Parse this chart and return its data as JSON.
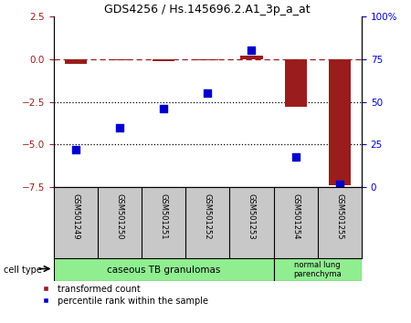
{
  "title": "GDS4256 / Hs.145696.2.A1_3p_a_at",
  "samples": [
    "GSM501249",
    "GSM501250",
    "GSM501251",
    "GSM501252",
    "GSM501253",
    "GSM501254",
    "GSM501255"
  ],
  "red_values": [
    -0.3,
    -0.1,
    -0.15,
    -0.1,
    0.2,
    -2.8,
    -7.4
  ],
  "blue_values_pct": [
    22,
    35,
    46,
    55,
    80,
    18,
    2
  ],
  "ylim_left": [
    -7.5,
    2.5
  ],
  "ylim_right": [
    0,
    100
  ],
  "yticks_left": [
    2.5,
    0,
    -2.5,
    -5,
    -7.5
  ],
  "yticks_right": [
    100,
    75,
    50,
    25,
    0
  ],
  "ytick_labels_right": [
    "100%",
    "75",
    "50",
    "25",
    "0"
  ],
  "hlines": [
    -2.5,
    -5.0
  ],
  "red_color": "#9B1C1C",
  "blue_color": "#0000CC",
  "group1_label": "caseous TB granulomas",
  "group2_label": "normal lung\nparenchyma",
  "group1_color": "#90EE90",
  "group2_color": "#90EE90",
  "cell_type_label": "cell type",
  "legend_red_label": "transformed count",
  "legend_blue_label": "percentile rank within the sample",
  "sample_label_bg": "#C8C8C8",
  "bar_width": 0.5
}
